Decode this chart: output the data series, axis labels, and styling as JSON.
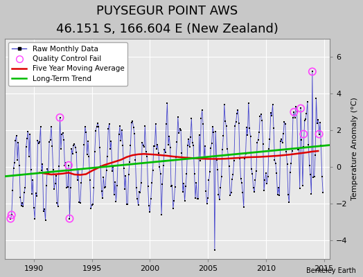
{
  "title": "PUYSEGUR POINT AWS",
  "subtitle": "46.151 S, 166.604 E (New Zealand)",
  "ylabel": "Temperature Anomaly (°C)",
  "credit": "Berkeley Earth",
  "xlim": [
    1987.5,
    2015.5
  ],
  "ylim": [
    -5.0,
    7.0
  ],
  "yticks": [
    -4,
    -2,
    0,
    2,
    4,
    6
  ],
  "xticks": [
    1990,
    1995,
    2000,
    2005,
    2010,
    2015
  ],
  "bg_color": "#c8c8c8",
  "plot_bg_color": "#e8e8e8",
  "raw_line_color": "#4444cc",
  "raw_marker_color": "#000000",
  "moving_avg_color": "#dd0000",
  "trend_color": "#00bb00",
  "qc_fail_color": "#ff44ff",
  "title_fontsize": 13,
  "subtitle_fontsize": 9,
  "label_fontsize": 8,
  "tick_fontsize": 8,
  "legend_fontsize": 7.5
}
